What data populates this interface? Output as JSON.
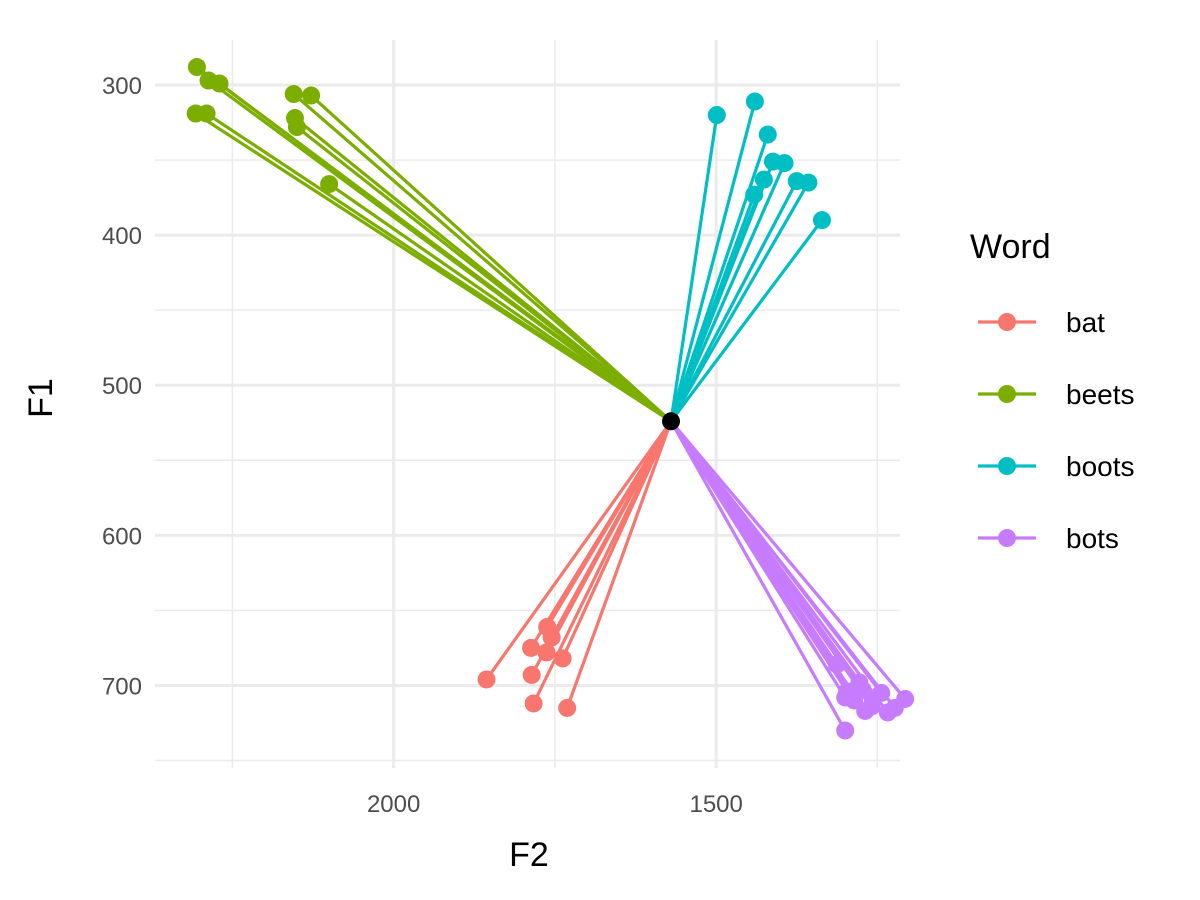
{
  "chart_data": {
    "type": "scatter",
    "xlabel": "F2",
    "ylabel": "F1",
    "xlim": [
      2370,
      1215
    ],
    "ylim": [
      755,
      270
    ],
    "x_reversed": true,
    "y_reversed": true,
    "x_ticks": [
      2000,
      1500
    ],
    "y_ticks": [
      300,
      400,
      500,
      600,
      700
    ],
    "grid": true,
    "legend": {
      "title": "Word",
      "position": "right"
    },
    "origin": {
      "F2": 1570,
      "F1": 524
    },
    "series": [
      {
        "name": "bat",
        "color": "#F8766D",
        "points": [
          {
            "F2": 1856,
            "F1": 696
          },
          {
            "F2": 1786,
            "F1": 693
          },
          {
            "F2": 1783,
            "F1": 712
          },
          {
            "F2": 1787,
            "F1": 675
          },
          {
            "F2": 1762,
            "F1": 661
          },
          {
            "F2": 1763,
            "F1": 678
          },
          {
            "F2": 1755,
            "F1": 668
          },
          {
            "F2": 1738,
            "F1": 682
          },
          {
            "F2": 1731,
            "F1": 715
          }
        ]
      },
      {
        "name": "beets",
        "color": "#7CAE00",
        "points": [
          {
            "F2": 2305,
            "F1": 288
          },
          {
            "F2": 2287,
            "F1": 297
          },
          {
            "F2": 2270,
            "F1": 299
          },
          {
            "F2": 2307,
            "F1": 319
          },
          {
            "F2": 2290,
            "F1": 319
          },
          {
            "F2": 2155,
            "F1": 306
          },
          {
            "F2": 2128,
            "F1": 307
          },
          {
            "F2": 2153,
            "F1": 322
          },
          {
            "F2": 2150,
            "F1": 328
          },
          {
            "F2": 2100,
            "F1": 366
          }
        ]
      },
      {
        "name": "boots",
        "color": "#00BFC4",
        "points": [
          {
            "F2": 1499,
            "F1": 320
          },
          {
            "F2": 1440,
            "F1": 311
          },
          {
            "F2": 1420,
            "F1": 333
          },
          {
            "F2": 1412,
            "F1": 351
          },
          {
            "F2": 1394,
            "F1": 352
          },
          {
            "F2": 1426,
            "F1": 363
          },
          {
            "F2": 1441,
            "F1": 373
          },
          {
            "F2": 1375,
            "F1": 364
          },
          {
            "F2": 1357,
            "F1": 365
          },
          {
            "F2": 1336,
            "F1": 390
          }
        ]
      },
      {
        "name": "bots",
        "color": "#C77CFF",
        "points": [
          {
            "F2": 1257,
            "F1": 710
          },
          {
            "F2": 1244,
            "F1": 705
          },
          {
            "F2": 1259,
            "F1": 714
          },
          {
            "F2": 1297,
            "F1": 704
          },
          {
            "F2": 1286,
            "F1": 710
          },
          {
            "F2": 1278,
            "F1": 698
          },
          {
            "F2": 1273,
            "F1": 703
          },
          {
            "F2": 1269,
            "F1": 717
          },
          {
            "F2": 1234,
            "F1": 718
          },
          {
            "F2": 1207,
            "F1": 709
          },
          {
            "F2": 1223,
            "F1": 715
          },
          {
            "F2": 1300,
            "F1": 708
          },
          {
            "F2": 1313,
            "F1": 686
          },
          {
            "F2": 1300,
            "F1": 730
          }
        ]
      }
    ]
  }
}
